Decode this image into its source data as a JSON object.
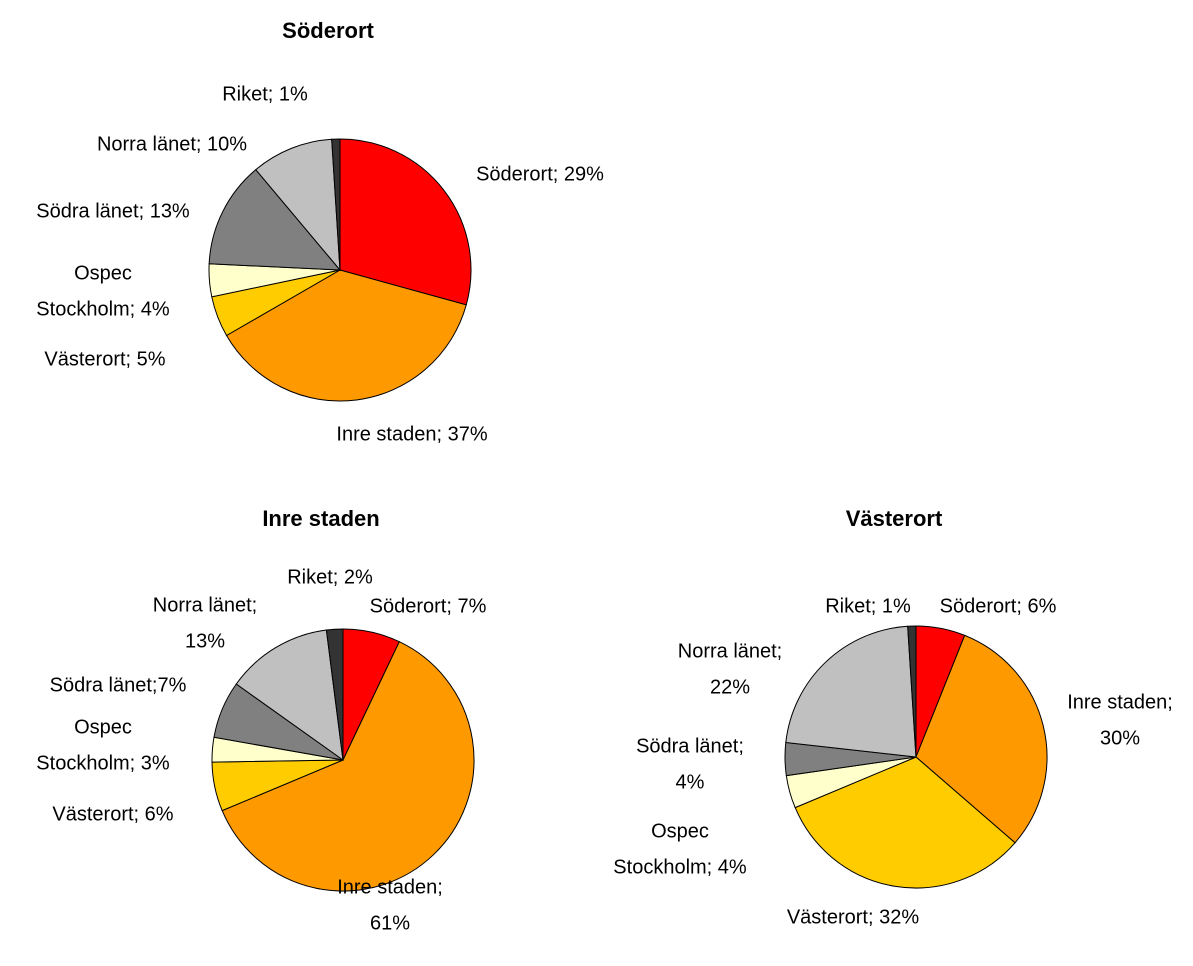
{
  "chart_data": [
    {
      "type": "pie",
      "title": "Söderort",
      "values": [
        29,
        37,
        5,
        4,
        13,
        10,
        1
      ],
      "value_labels": [
        [
          "Söderort; 29%"
        ],
        [
          "Inre staden; 37%"
        ],
        [
          "Västerort; 5%"
        ],
        [
          "Ospec",
          "Stockholm; 4%"
        ],
        [
          "Södra länet; 13%"
        ],
        [
          "Norra länet; 10%"
        ],
        [
          "Riket; 1%"
        ]
      ],
      "colors": [
        "#ff0000",
        "#ff9900",
        "#ffcc00",
        "#ffffcc",
        "#808080",
        "#c0c0c0",
        "#333333"
      ]
    },
    {
      "type": "pie",
      "title": "Inre staden",
      "values": [
        7,
        61,
        6,
        3,
        7,
        13,
        2
      ],
      "value_labels": [
        [
          "Söderort; 7%"
        ],
        [
          "Inre staden;",
          "61%"
        ],
        [
          "Västerort; 6%"
        ],
        [
          "Ospec",
          "Stockholm; 3%"
        ],
        [
          "Södra länet;7%"
        ],
        [
          "Norra länet;",
          "13%"
        ],
        [
          "Riket; 2%"
        ]
      ],
      "colors": [
        "#ff0000",
        "#ff9900",
        "#ffcc00",
        "#ffffcc",
        "#808080",
        "#c0c0c0",
        "#333333"
      ]
    },
    {
      "type": "pie",
      "title": "Västerort",
      "values": [
        6,
        30,
        32,
        4,
        4,
        22,
        1
      ],
      "value_labels": [
        [
          "Söderort; 6%"
        ],
        [
          "Inre staden;",
          "30%"
        ],
        [
          "Västerort; 32%"
        ],
        [
          "Ospec",
          "Stockholm; 4%"
        ],
        [
          "Södra länet;",
          "4%"
        ],
        [
          "Norra länet;",
          "22%"
        ],
        [
          "Riket; 1%"
        ]
      ],
      "colors": [
        "#ff0000",
        "#ff9900",
        "#ffcc00",
        "#ffffcc",
        "#808080",
        "#c0c0c0",
        "#333333"
      ]
    }
  ]
}
